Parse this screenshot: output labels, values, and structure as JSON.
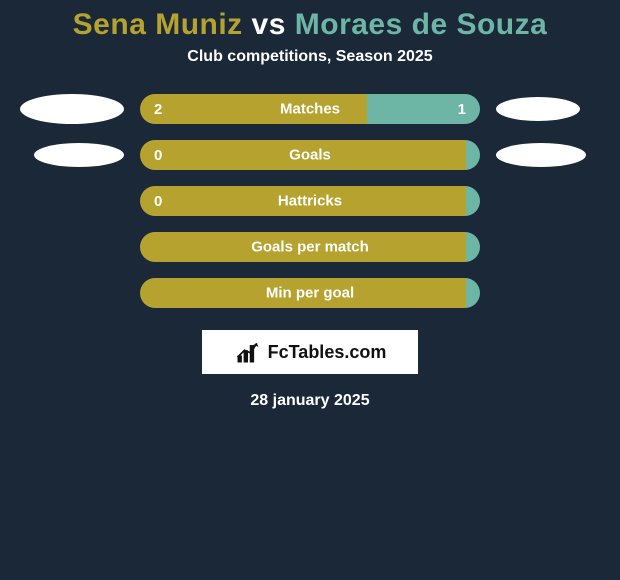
{
  "background_color": "#1b2838",
  "title": {
    "player1": "Sena Muniz",
    "vs": "vs",
    "player2": "Moraes de Souza",
    "player1_color": "#b5a22f",
    "vs_color": "#ffffff",
    "player2_color": "#6db5a4"
  },
  "subtitle": "Club competitions, Season 2025",
  "bar_colors": {
    "left": "#b5a22f",
    "right": "#6db5a4",
    "neutral": "#b5a22f"
  },
  "rows": [
    {
      "label": "Matches",
      "left_value": "2",
      "right_value": "1",
      "left_pct": 66.7,
      "right_pct": 33.3,
      "left_color": "#b5a22f",
      "right_color": "#6db5a4",
      "show_left_oval": true,
      "show_right_oval": true,
      "oval_left_w": 104,
      "oval_left_h": 30,
      "oval_right_w": 84,
      "oval_right_h": 24
    },
    {
      "label": "Goals",
      "left_value": "0",
      "right_value": "",
      "left_pct": 100,
      "right_pct": 0,
      "left_color": "#b5a22f",
      "right_color": "#6db5a4",
      "show_left_oval": true,
      "show_right_oval": true,
      "oval_left_w": 90,
      "oval_left_h": 24,
      "oval_right_w": 90,
      "oval_right_h": 24
    },
    {
      "label": "Hattricks",
      "left_value": "0",
      "right_value": "",
      "left_pct": 100,
      "right_pct": 0,
      "left_color": "#b5a22f",
      "right_color": "#6db5a4",
      "show_left_oval": false,
      "show_right_oval": false
    },
    {
      "label": "Goals per match",
      "left_value": "",
      "right_value": "",
      "left_pct": 100,
      "right_pct": 0,
      "left_color": "#b5a22f",
      "right_color": "#6db5a4",
      "show_left_oval": false,
      "show_right_oval": false
    },
    {
      "label": "Min per goal",
      "left_value": "",
      "right_value": "",
      "left_pct": 100,
      "right_pct": 0,
      "left_color": "#b5a22f",
      "right_color": "#6db5a4",
      "show_left_oval": false,
      "show_right_oval": false
    }
  ],
  "logo_text": "FcTables.com",
  "date": "28 january 2025"
}
